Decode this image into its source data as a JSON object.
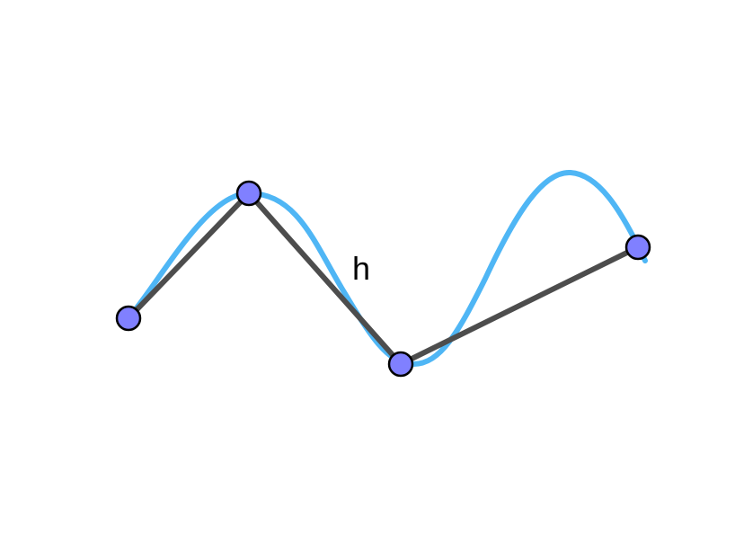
{
  "figure": {
    "curve_label": "h",
    "colors": {
      "polyline": "#4d4d4d",
      "spline": "#4fb6f5",
      "point_fill": "#8080ff",
      "point_stroke": "#000000"
    },
    "point_count": 4,
    "curve_type": "interpolating-spline",
    "polyline_type": "connecting-segments"
  }
}
